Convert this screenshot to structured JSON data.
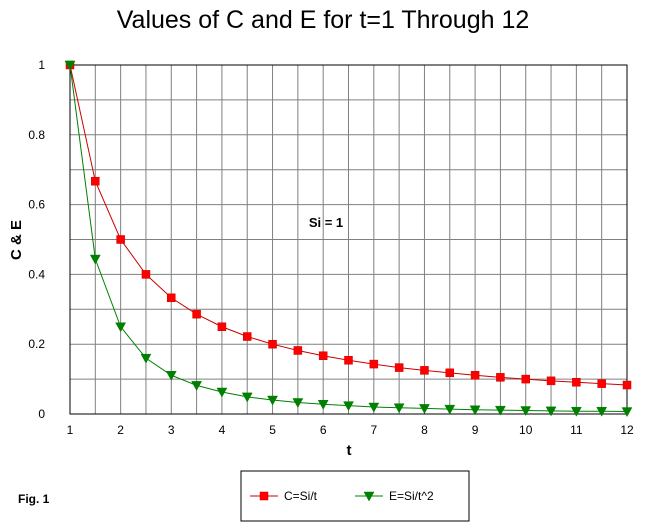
{
  "chart_data": {
    "type": "line",
    "title": "Values of C and E for t=1 Through 12",
    "xlabel": "t",
    "ylabel": "C & E",
    "xlim": [
      1,
      12
    ],
    "ylim": [
      0,
      1
    ],
    "xticks": [
      "1",
      "2",
      "3",
      "4",
      "5",
      "6",
      "7",
      "8",
      "9",
      "10",
      "11",
      "12"
    ],
    "yticks": [
      "0",
      "0.2",
      "0.4",
      "0.6",
      "0.8",
      "1"
    ],
    "grid": true,
    "annotation": "Si = 1",
    "figure_label": "Fig. 1",
    "legend_position": "bottom",
    "x": [
      1,
      1.5,
      2,
      2.5,
      3,
      3.5,
      4,
      4.5,
      5,
      5.5,
      6,
      6.5,
      7,
      7.5,
      8,
      8.5,
      9,
      9.5,
      10,
      10.5,
      11,
      11.5,
      12
    ],
    "series": [
      {
        "name": "C=Si/t",
        "color": "#ff0000",
        "line_color": "#cc0000",
        "marker": "square",
        "values": [
          1,
          0.667,
          0.5,
          0.4,
          0.333,
          0.286,
          0.25,
          0.222,
          0.2,
          0.182,
          0.167,
          0.154,
          0.143,
          0.133,
          0.125,
          0.118,
          0.111,
          0.105,
          0.1,
          0.095,
          0.091,
          0.087,
          0.083
        ]
      },
      {
        "name": "E=Si/t^2",
        "color": "#008000",
        "line_color": "#008000",
        "marker": "triangle-down",
        "values": [
          1,
          0.444,
          0.25,
          0.16,
          0.111,
          0.082,
          0.063,
          0.049,
          0.04,
          0.033,
          0.028,
          0.024,
          0.02,
          0.018,
          0.016,
          0.014,
          0.012,
          0.011,
          0.01,
          0.009,
          0.008,
          0.008,
          0.007
        ]
      }
    ]
  }
}
